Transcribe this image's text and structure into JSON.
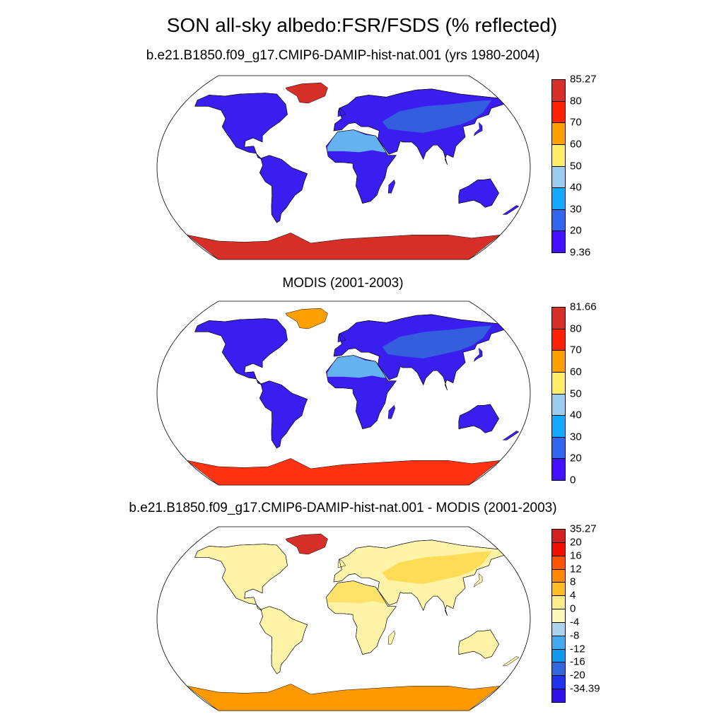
{
  "figure": {
    "title": "SON all-sky albedo:FSR/FSDS (% reflected)"
  },
  "panels": [
    {
      "title": "b.e21.B1850.f09_g17.CMIP6-DAMIP-hist-nat.001 (yrs 1980-2004)",
      "colorbar": {
        "labels": [
          "85.27",
          "80",
          "70",
          "60",
          "50",
          "40",
          "30",
          "20",
          "9.36"
        ],
        "colors": [
          "#d62f27",
          "#ff2200",
          "#ff9f00",
          "#ffee66",
          "#99ccee",
          "#11aaff",
          "#3366ee",
          "#4411ff"
        ]
      },
      "land": "#3a1ef0",
      "sahara": "#66bbee",
      "asia": "#3366dd",
      "ice": "#d62f27",
      "greenland": "#d62f27"
    },
    {
      "title": "MODIS (2001-2003)",
      "colorbar": {
        "labels": [
          "81.66",
          "80",
          "70",
          "60",
          "50",
          "40",
          "30",
          "20",
          "0"
        ],
        "colors": [
          "#d62f27",
          "#ff2200",
          "#ff9f00",
          "#ffee66",
          "#99ccee",
          "#11aaff",
          "#3366ee",
          "#4411ff"
        ]
      },
      "land": "#3a1ef0",
      "sahara": "#66bbee",
      "asia": "#3366dd",
      "ice": "#ff3311",
      "greenland": "#ff9f00"
    },
    {
      "title": "b.e21.B1850.f09_g17.CMIP6-DAMIP-hist-nat.001 - MODIS (2001-2003)",
      "colorbar": {
        "labels": [
          "35.27",
          "20",
          "16",
          "12",
          "8",
          "4",
          "0",
          "-4",
          "-8",
          "-12",
          "-16",
          "-20",
          "-34.39"
        ],
        "colors": [
          "#d42020",
          "#ee1100",
          "#ff5500",
          "#ff8800",
          "#ffbb22",
          "#ffee88",
          "#fff6bb",
          "#aad4ee",
          "#44aaee",
          "#1199ee",
          "#3366dd",
          "#2233ee",
          "#3311ee"
        ]
      },
      "land": "#fff3a8",
      "sahara": "#ffe066",
      "asia": "#ffd94d",
      "ice": "#ff9900",
      "greenland": "#d62f27"
    }
  ]
}
